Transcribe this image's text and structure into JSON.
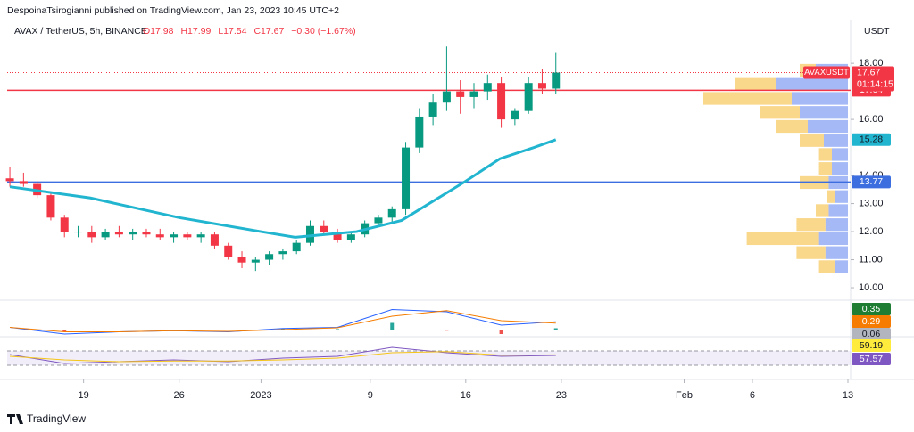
{
  "header": {
    "published": "DespoinaTsirogianni published on TradingView.com, Jan 23, 2023 10:45 UTC+2"
  },
  "footer": {
    "brand": "TradingView"
  },
  "chart_data": [
    {
      "type": "candlestick",
      "title": "AVAX / TetherUS, 5h, BINANCE",
      "ohlc_labels": [
        "O17.98",
        "H17.99",
        "L17.54",
        "C17.67"
      ],
      "change": "−0.30 (−1.67%)",
      "y_axis_label": "USDT",
      "x": [
        12.6,
        13.6,
        14.6,
        15.6,
        16.6,
        17.6,
        18.6,
        19.6,
        20.6,
        21.6,
        22.6,
        23.6,
        24.6,
        25.6,
        26.6,
        27.6,
        28.6,
        29.6,
        30.6,
        31.6,
        32.6,
        33.6,
        34.6,
        35.6,
        36.6,
        37.6,
        38.6,
        39.6,
        40.6,
        41.6,
        42.6,
        43.6,
        44.6,
        45.6,
        46.6,
        47.6,
        48.6,
        49.6,
        50.6,
        51.6,
        52.6
      ],
      "open": [
        13.9,
        13.8,
        13.7,
        13.3,
        12.5,
        12.0,
        12.0,
        11.8,
        12.0,
        11.9,
        12.0,
        11.9,
        11.8,
        11.9,
        11.8,
        11.9,
        11.5,
        11.1,
        10.9,
        11.0,
        11.2,
        11.3,
        11.6,
        12.2,
        12.0,
        11.7,
        11.9,
        12.3,
        12.5,
        12.8,
        15.0,
        16.1,
        16.6,
        17.0,
        16.8,
        17.0,
        17.3,
        16.0,
        16.3,
        17.3,
        17.1
      ],
      "high": [
        14.3,
        14.1,
        13.8,
        13.4,
        12.6,
        12.2,
        12.2,
        12.1,
        12.2,
        12.1,
        12.1,
        12.1,
        12.0,
        12.0,
        12.0,
        12.0,
        11.6,
        11.3,
        11.1,
        11.3,
        11.4,
        11.7,
        12.4,
        12.4,
        12.1,
        12.0,
        12.4,
        12.6,
        12.9,
        15.2,
        16.4,
        16.9,
        18.6,
        17.4,
        17.3,
        17.6,
        17.5,
        16.4,
        17.5,
        17.8,
        18.4
      ],
      "low": [
        13.6,
        13.6,
        13.2,
        12.4,
        11.8,
        11.8,
        11.6,
        11.7,
        11.8,
        11.7,
        11.8,
        11.7,
        11.6,
        11.7,
        11.6,
        11.4,
        11.0,
        10.7,
        10.6,
        10.8,
        11.0,
        11.2,
        11.5,
        11.9,
        11.6,
        11.6,
        11.8,
        12.2,
        12.3,
        12.6,
        14.8,
        15.8,
        16.3,
        16.2,
        16.4,
        16.7,
        15.7,
        15.8,
        16.2,
        16.9,
        16.9
      ],
      "close": [
        13.8,
        13.7,
        13.3,
        12.5,
        12.0,
        12.0,
        11.8,
        12.0,
        11.9,
        12.0,
        11.9,
        11.8,
        11.9,
        11.8,
        11.9,
        11.5,
        11.1,
        10.9,
        11.0,
        11.2,
        11.3,
        11.6,
        12.2,
        12.0,
        11.7,
        11.9,
        12.3,
        12.5,
        12.8,
        15.0,
        16.1,
        16.6,
        17.0,
        16.8,
        17.0,
        17.3,
        16.0,
        16.3,
        17.3,
        17.1,
        17.67
      ],
      "up_color": "#089981",
      "down_color": "#f23645",
      "ma": {
        "color": "#22b5d0",
        "x": [
          12.6,
          18.5,
          25,
          31,
          33.5,
          38,
          41.3,
          46,
          48.5,
          51,
          52.6
        ],
        "values": [
          13.6,
          13.2,
          12.5,
          12.0,
          11.8,
          12.0,
          12.4,
          13.8,
          14.6,
          15.0,
          15.28
        ]
      },
      "hlines": [
        {
          "value": 17.04,
          "color": "#f23645"
        },
        {
          "value": 13.77,
          "color": "#3d6ee0"
        }
      ],
      "last_price": {
        "value": 17.67,
        "symbol": "AVAXUSDT",
        "countdown": "01:14:15",
        "color": "#f23645"
      },
      "volume_profile": {
        "prices": [
          17.75,
          17.25,
          16.75,
          16.25,
          15.75,
          15.25,
          14.75,
          14.25,
          13.75,
          13.25,
          12.75,
          12.25,
          11.75,
          11.25,
          10.75
        ],
        "up": [
          20,
          45,
          35,
          30,
          25,
          15,
          10,
          10,
          12,
          8,
          12,
          14,
          18,
          14,
          8
        ],
        "down": [
          10,
          25,
          55,
          25,
          20,
          15,
          8,
          8,
          18,
          5,
          8,
          18,
          45,
          18,
          10
        ],
        "up_color": "#5b7ff0",
        "down_color": "#f7c65a",
        "xlim": [
          0,
          100
        ]
      },
      "xlim": [
        12.4,
        74.0
      ],
      "xticks": [
        {
          "value": 18,
          "label": "19"
        },
        {
          "value": 25,
          "label": "26"
        },
        {
          "value": 31,
          "label": "2023"
        },
        {
          "value": 39,
          "label": "9"
        },
        {
          "value": 46,
          "label": "16"
        },
        {
          "value": 53,
          "label": "23"
        },
        {
          "value": 62,
          "label": "Feb"
        },
        {
          "value": 67,
          "label": "6"
        },
        {
          "value": 74,
          "label": "13"
        }
      ],
      "ylim": [
        9.62,
        18.83
      ],
      "yticks": [
        {
          "value": 10,
          "label": "10.00"
        },
        {
          "value": 11,
          "label": "11.00"
        },
        {
          "value": 12,
          "label": "12.00"
        },
        {
          "value": 13,
          "label": "13.00"
        },
        {
          "value": 14,
          "label": "14.00"
        },
        {
          "value": 16,
          "label": "16.00"
        },
        {
          "value": 18,
          "label": "18.00"
        }
      ]
    },
    {
      "type": "macd",
      "x": [
        12.6,
        16.6,
        20.6,
        24.6,
        28.6,
        32.6,
        36.6,
        40.6,
        44.6,
        48.6,
        52.6
      ],
      "series": [
        {
          "color": "#2962ff",
          "values": [
            0.1,
            -0.2,
            -0.1,
            -0.05,
            -0.1,
            0.05,
            0.1,
            0.9,
            0.8,
            0.2,
            0.35
          ],
          "tag_color": "#1e7d32"
        },
        {
          "color": "#f57c00",
          "values": [
            0.1,
            -0.1,
            -0.1,
            -0.05,
            -0.08,
            0.0,
            0.08,
            0.6,
            0.85,
            0.4,
            0.29
          ],
          "tag_color": "#f57c00"
        }
      ],
      "histogram": {
        "values": [
          0,
          -0.1,
          0,
          0,
          -0.02,
          0.05,
          0.02,
          0.3,
          -0.05,
          -0.2,
          0.06
        ],
        "up_color": "#26a69a",
        "down_color": "#ef5350",
        "tag_color": "#b2b5be"
      },
      "ylim": [
        -0.2,
        1.2
      ]
    },
    {
      "type": "rsi",
      "x": [
        12.6,
        16.6,
        20.6,
        24.6,
        28.6,
        32.6,
        36.6,
        40.6,
        44.6,
        48.6,
        52.6
      ],
      "series": [
        {
          "color": "#7e57c2",
          "values": [
            60,
            35,
            40,
            45,
            40,
            50,
            55,
            80,
            65,
            55,
            57.57
          ],
          "tag_color": "#7e57c2"
        },
        {
          "color": "#f5c518",
          "values": [
            55,
            45,
            40,
            42,
            42,
            45,
            50,
            65,
            68,
            58,
            59.19
          ],
          "tag_color": "#ffeb3b"
        }
      ],
      "band": [
        30,
        70
      ],
      "ylim": [
        0,
        100
      ]
    }
  ]
}
